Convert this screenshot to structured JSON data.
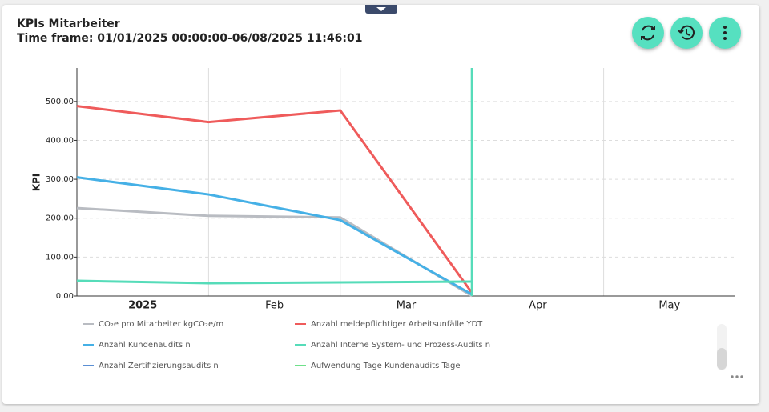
{
  "header": {
    "title": "KPIs Mitarbeiter",
    "timeframe": "Time frame: 01/01/2025 00:00:00-06/08/2025 11:46:01"
  },
  "chart_data": {
    "type": "line",
    "ylabel": "KPI",
    "categories": [
      "2025",
      "Feb",
      "Mar",
      "Apr",
      "May"
    ],
    "ylim": [
      0,
      586
    ],
    "yticks": [
      {
        "value": 0,
        "label": "0.00"
      },
      {
        "value": 100,
        "label": "100.00"
      },
      {
        "value": 200,
        "label": "200.00"
      },
      {
        "value": 300,
        "label": "300.00"
      },
      {
        "value": 400,
        "label": "400.00"
      },
      {
        "value": 500,
        "label": "500.00"
      }
    ],
    "grid": true,
    "series": [
      {
        "name": "CO₂e pro Mitarbeiter  kgCO₂e/m",
        "color": "#b9bcc2",
        "values": [
          226,
          206,
          202,
          0,
          null
        ]
      },
      {
        "name": "Anzahl meldepflichtiger Arbeitsunfälle  YDT",
        "color": "#ef5b5b",
        "values": [
          488,
          447,
          477,
          8,
          null
        ]
      },
      {
        "name": "Anzahl Kundenaudits  n",
        "color": "#45b0e6",
        "values": [
          305,
          261,
          195,
          4,
          null
        ]
      },
      {
        "name": "Anzahl Interne System- und Prozess-Audits  n",
        "color": "#56dcb9",
        "values": [
          39,
          33,
          35,
          37,
          null
        ]
      },
      {
        "name": "Anzahl Zertifizierungsaudits  n",
        "color": "#5b8fd4",
        "values": [
          null,
          null,
          null,
          null,
          null
        ]
      },
      {
        "name": "Aufwendung Tage Kundenaudits  Tage",
        "color": "#6ee08a",
        "values": [
          null,
          null,
          null,
          null,
          null
        ]
      }
    ]
  }
}
